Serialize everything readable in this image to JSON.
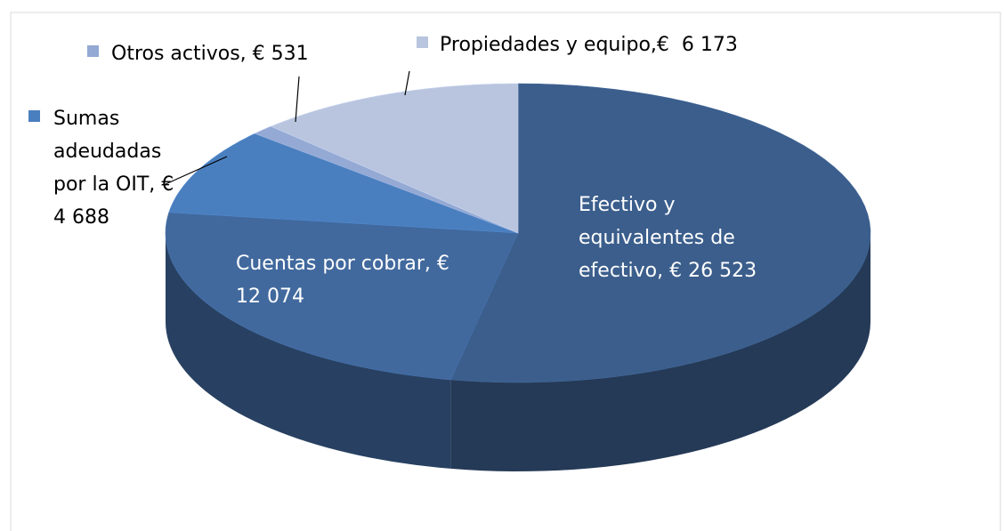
{
  "chart_data": {
    "type": "pie",
    "values": [
      26523,
      12074,
      4688,
      531,
      6173
    ],
    "value_labels": [
      "Efectivo y equivalentes de efectivo, € 26 523",
      "Cuentas por cobrar, € 12 074",
      "Sumas adeudadas por la OIT, € 4 688",
      "Otros activos, € 531",
      "Propiedades y equipo,€  6 173"
    ],
    "colors": [
      "#3b5e8c",
      "#41699e",
      "#4a7fbf",
      "#94a9d3",
      "#b9c5de"
    ]
  }
}
